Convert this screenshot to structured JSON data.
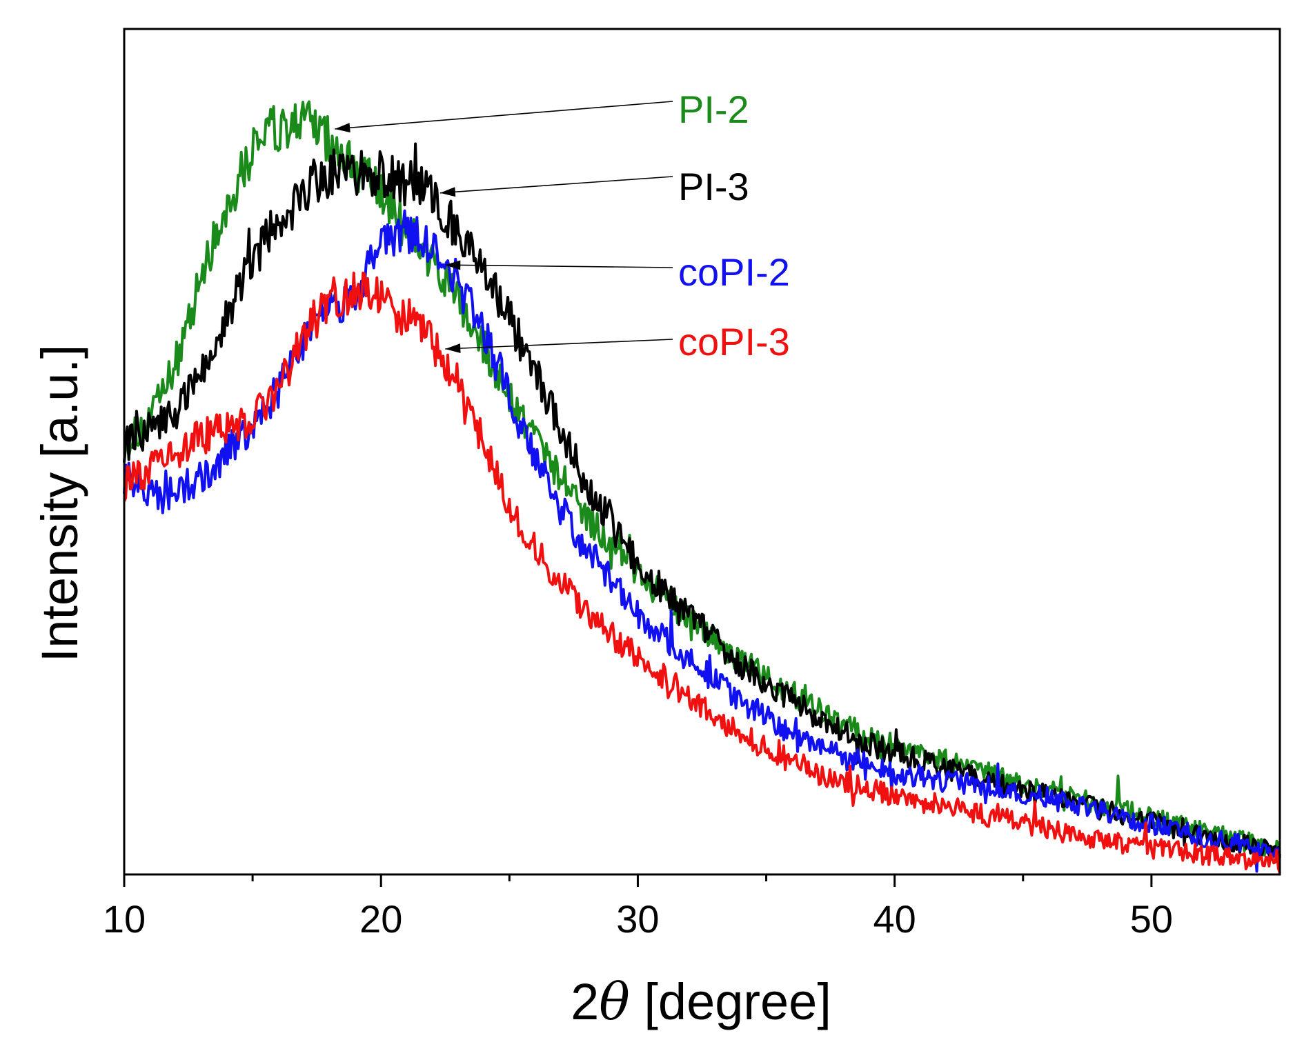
{
  "chart_data": {
    "type": "line",
    "title": "",
    "xlabel_prefix": "2",
    "xlabel_symbol": "θ",
    "xlabel_suffix": " [degree]",
    "ylabel": "Intensity [a.u.]",
    "xlim": [
      10,
      55
    ],
    "ylim": [
      0,
      1
    ],
    "x_ticks": [
      10,
      20,
      30,
      40,
      50
    ],
    "x_tick_labels": [
      "10",
      "20",
      "30",
      "40",
      "50"
    ],
    "x_minor_ticks": [
      15,
      25,
      35,
      45
    ],
    "y_ticks_labeled": false,
    "grid": false,
    "series": [
      {
        "name": "PI-2",
        "color": "#1a8a1a",
        "label_anchor_x": 18.2,
        "label_anchor_y": 0.925,
        "x": [
          10,
          11,
          12,
          13,
          14,
          15,
          15.5,
          16,
          16.5,
          17,
          17.5,
          18,
          19,
          20,
          21,
          22,
          23,
          24,
          25,
          26,
          27,
          28,
          29,
          30,
          31,
          32,
          33,
          34,
          35,
          36,
          37,
          38,
          39,
          40,
          41,
          42,
          43,
          44,
          45,
          46,
          47,
          48,
          49,
          50,
          51,
          52,
          53,
          54,
          55
        ],
        "y": [
          0.53,
          0.56,
          0.63,
          0.74,
          0.83,
          0.9,
          0.93,
          0.92,
          0.93,
          0.93,
          0.925,
          0.91,
          0.88,
          0.84,
          0.8,
          0.76,
          0.71,
          0.65,
          0.59,
          0.54,
          0.49,
          0.44,
          0.41,
          0.37,
          0.34,
          0.31,
          0.285,
          0.26,
          0.24,
          0.22,
          0.2,
          0.18,
          0.165,
          0.155,
          0.145,
          0.135,
          0.125,
          0.115,
          0.105,
          0.098,
          0.09,
          0.08,
          0.072,
          0.064,
          0.056,
          0.048,
          0.04,
          0.032,
          0.025
        ]
      },
      {
        "name": "PI-3",
        "color": "#000000",
        "label_anchor_x": 22.3,
        "label_anchor_y": 0.845,
        "x": [
          10,
          11,
          12,
          13,
          14,
          15,
          16,
          17,
          18,
          18.5,
          19,
          20,
          21,
          22,
          23,
          24,
          25,
          26,
          27,
          28,
          29,
          30,
          31,
          32,
          33,
          34,
          35,
          36,
          37,
          38,
          39,
          40,
          41,
          42,
          43,
          44,
          45,
          46,
          47,
          48,
          49,
          50,
          51,
          52,
          53,
          54,
          55
        ],
        "y": [
          0.53,
          0.55,
          0.57,
          0.62,
          0.69,
          0.76,
          0.81,
          0.85,
          0.87,
          0.88,
          0.87,
          0.87,
          0.86,
          0.84,
          0.8,
          0.75,
          0.69,
          0.62,
          0.55,
          0.48,
          0.43,
          0.38,
          0.35,
          0.32,
          0.285,
          0.255,
          0.23,
          0.21,
          0.19,
          0.17,
          0.155,
          0.145,
          0.135,
          0.125,
          0.115,
          0.105,
          0.098,
          0.09,
          0.082,
          0.074,
          0.066,
          0.058,
          0.05,
          0.042,
          0.035,
          0.028,
          0.022
        ]
      },
      {
        "name": "coPI-2",
        "color": "#1010f0",
        "label_anchor_x": 22.5,
        "label_anchor_y": 0.755,
        "x": [
          10,
          11,
          12,
          13,
          14,
          15,
          16,
          17,
          18,
          19,
          19.5,
          20,
          20.5,
          21,
          21.5,
          22,
          23,
          24,
          25,
          26,
          27,
          28,
          29,
          30,
          31,
          32,
          33,
          34,
          35,
          36,
          37,
          38,
          39,
          40,
          41,
          42,
          43,
          44,
          45,
          46,
          47,
          48,
          49,
          50,
          51,
          52,
          53,
          54,
          55
        ],
        "y": [
          0.49,
          0.47,
          0.47,
          0.49,
          0.52,
          0.55,
          0.6,
          0.66,
          0.7,
          0.72,
          0.75,
          0.78,
          0.79,
          0.8,
          0.79,
          0.78,
          0.73,
          0.67,
          0.59,
          0.51,
          0.45,
          0.4,
          0.36,
          0.32,
          0.29,
          0.26,
          0.235,
          0.21,
          0.19,
          0.17,
          0.155,
          0.14,
          0.13,
          0.12,
          0.115,
          0.11,
          0.105,
          0.1,
          0.094,
          0.088,
          0.08,
          0.072,
          0.064,
          0.056,
          0.048,
          0.04,
          0.034,
          0.028,
          0.022
        ]
      },
      {
        "name": "coPI-3",
        "color": "#f01010",
        "label_anchor_x": 22.5,
        "label_anchor_y": 0.65,
        "x": [
          10,
          11,
          12,
          13,
          14,
          15,
          16,
          17,
          18,
          18.5,
          19,
          19.5,
          20,
          21,
          22,
          23,
          24,
          25,
          26,
          27,
          28,
          29,
          30,
          31,
          32,
          33,
          34,
          35,
          36,
          37,
          38,
          39,
          40,
          41,
          42,
          43,
          44,
          45,
          46,
          47,
          48,
          49,
          50,
          51,
          52,
          53,
          54,
          55
        ],
        "y": [
          0.48,
          0.5,
          0.52,
          0.54,
          0.55,
          0.56,
          0.6,
          0.67,
          0.71,
          0.71,
          0.72,
          0.72,
          0.71,
          0.69,
          0.66,
          0.61,
          0.53,
          0.45,
          0.4,
          0.36,
          0.32,
          0.29,
          0.265,
          0.24,
          0.215,
          0.19,
          0.17,
          0.15,
          0.135,
          0.12,
          0.11,
          0.1,
          0.092,
          0.085,
          0.078,
          0.07,
          0.064,
          0.058,
          0.05,
          0.042,
          0.036,
          0.03,
          0.026,
          0.022,
          0.018,
          0.014,
          0.01,
          0.006
        ]
      }
    ]
  }
}
